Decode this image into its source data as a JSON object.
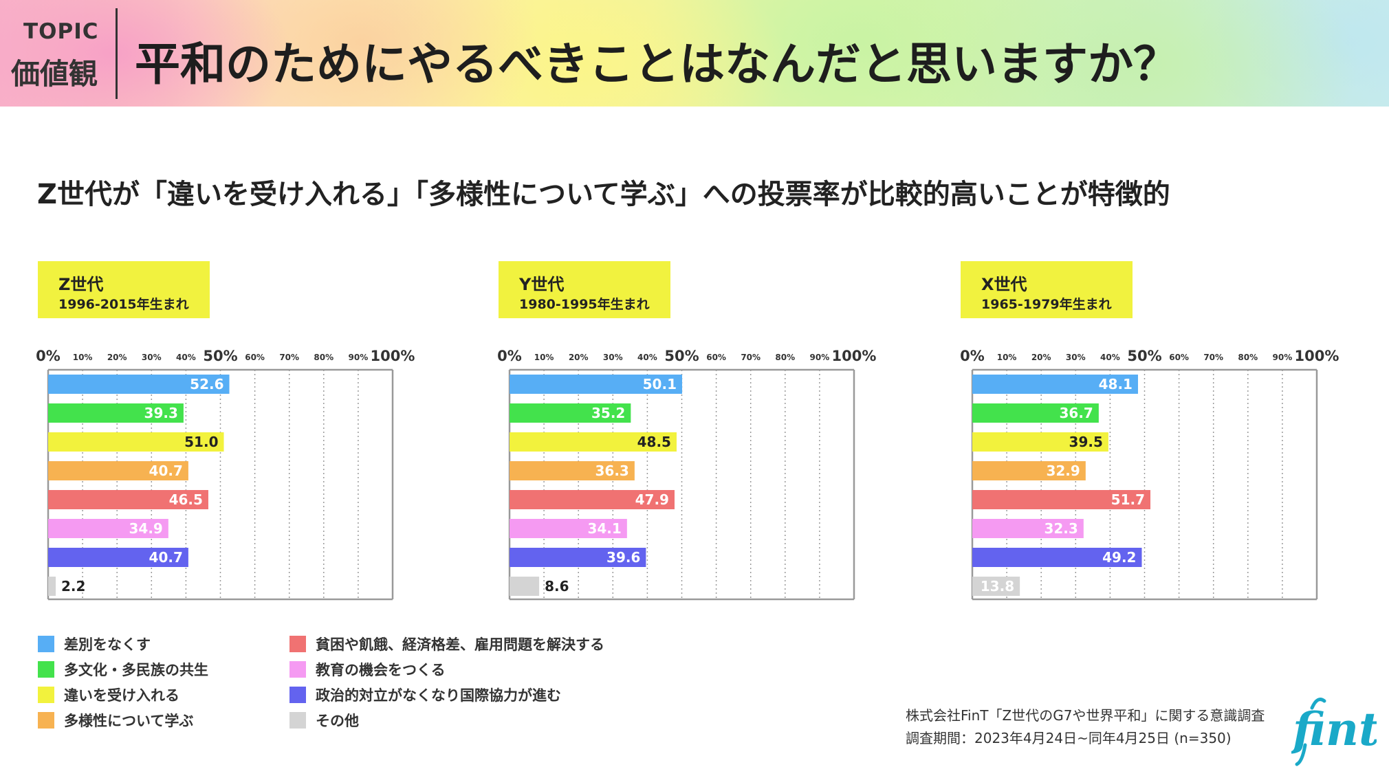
{
  "header": {
    "topic_label": "TOPIC",
    "topic_name": "価値観",
    "title": "平和のためにやるべきことはなんだと思いますか？"
  },
  "subtitle": "Z世代が「違いを受け入れる」「多様性について学ぶ」への投票率が比較的高いことが特徴的",
  "colors": {
    "header_divider": "#333333",
    "gen_box": "#f1f23f",
    "grid_dotted": "#999999",
    "frame": "#999999",
    "logo": "#1aa9c8"
  },
  "chart_data": [
    {
      "type": "bar",
      "orientation": "horizontal",
      "generation": "Z世代",
      "birth_range": "1996-2015年生まれ",
      "xlim": [
        0,
        100
      ],
      "x_ticks": [
        "0%",
        "10%",
        "20%",
        "30%",
        "40%",
        "50%",
        "60%",
        "70%",
        "80%",
        "90%",
        "100%"
      ],
      "grid": "dotted vertical",
      "categories": [
        "差別をなくす",
        "多文化・多民族の共生",
        "違いを受け入れる",
        "多様性について学ぶ",
        "貧困や飢餓、経済格差、雇用問題を解決する",
        "教育の機会をつくる",
        "政治的対立がなくなり国際協力が進む",
        "その他"
      ],
      "values": [
        52.6,
        39.3,
        51.0,
        40.7,
        46.5,
        34.9,
        40.7,
        2.2
      ],
      "labels": [
        "52.6",
        "39.3",
        "51.0",
        "40.7",
        "46.5",
        "34.9",
        "40.7",
        "2.2"
      ]
    },
    {
      "type": "bar",
      "orientation": "horizontal",
      "generation": "Y世代",
      "birth_range": "1980-1995年生まれ",
      "xlim": [
        0,
        100
      ],
      "x_ticks": [
        "0%",
        "10%",
        "20%",
        "30%",
        "40%",
        "50%",
        "60%",
        "70%",
        "80%",
        "90%",
        "100%"
      ],
      "grid": "dotted vertical",
      "categories": [
        "差別をなくす",
        "多文化・多民族の共生",
        "違いを受け入れる",
        "多様性について学ぶ",
        "貧困や飢餓、経済格差、雇用問題を解決する",
        "教育の機会をつくる",
        "政治的対立がなくなり国際協力が進む",
        "その他"
      ],
      "values": [
        50.1,
        35.2,
        48.5,
        36.3,
        47.9,
        34.1,
        39.6,
        8.6
      ],
      "labels": [
        "50.1",
        "35.2",
        "48.5",
        "36.3",
        "47.9",
        "34.1",
        "39.6",
        "8.6"
      ]
    },
    {
      "type": "bar",
      "orientation": "horizontal",
      "generation": "X世代",
      "birth_range": "1965-1979年生まれ",
      "xlim": [
        0,
        100
      ],
      "x_ticks": [
        "0%",
        "10%",
        "20%",
        "30%",
        "40%",
        "50%",
        "60%",
        "70%",
        "80%",
        "90%",
        "100%"
      ],
      "grid": "dotted vertical",
      "categories": [
        "差別をなくす",
        "多文化・多民族の共生",
        "違いを受け入れる",
        "多様性について学ぶ",
        "貧困や飢餓、経済格差、雇用問題を解決する",
        "教育の機会をつくる",
        "政治的対立がなくなり国際協力が進む",
        "その他"
      ],
      "values": [
        48.1,
        36.7,
        39.5,
        32.9,
        51.7,
        32.3,
        49.2,
        13.8
      ],
      "labels": [
        "48.1",
        "36.7",
        "39.5",
        "32.9",
        "51.7",
        "32.3",
        "49.2",
        "13.8"
      ]
    }
  ],
  "legend": {
    "placement": "bottom-left",
    "items": [
      {
        "label": "差別をなくす",
        "color": "#57aef5"
      },
      {
        "label": "多文化・多民族の共生",
        "color": "#43e24c"
      },
      {
        "label": "違いを受け入れる",
        "color": "#f2f23d"
      },
      {
        "label": "多様性について学ぶ",
        "color": "#f7b251"
      },
      {
        "label": "貧困や飢餓、経済格差、雇用問題を解決する",
        "color": "#f07272"
      },
      {
        "label": "教育の機会をつくる",
        "color": "#f59af2"
      },
      {
        "label": "政治的対立がなくなり国際協力が進む",
        "color": "#6363ef"
      },
      {
        "label": "その他",
        "color": "#d4d4d4"
      }
    ]
  },
  "label_colors": {
    "inside": "#ffffff",
    "inside_dark": "#222222",
    "outside": "#222222"
  },
  "source": {
    "line1": "株式会社FinT「Z世代のG7や世界平和」に関する意識調査",
    "line2": "調査期間：2023年4月24日~同年4月25日 (n=350)"
  },
  "logo": {
    "text": "fint",
    "icon": "fint-logo"
  }
}
